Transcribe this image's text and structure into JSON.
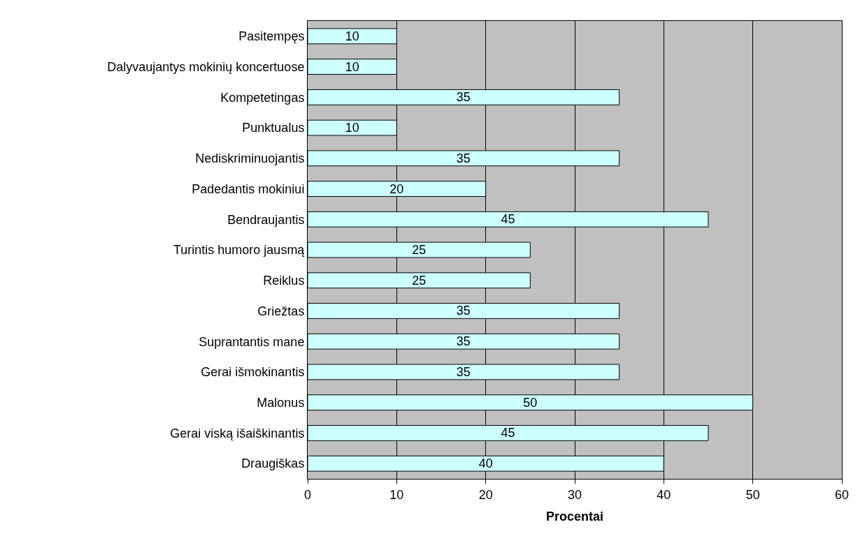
{
  "chart_data": {
    "type": "bar",
    "orientation": "horizontal",
    "xlabel": "Procentai",
    "categories": [
      "Pasitempęs",
      "Dalyvaujantys mokinių koncertuose",
      "Kompetetingas",
      "Punktualus",
      "Nediskriminuojantis",
      "Padedantis mokiniui",
      "Bendraujantis",
      "Turintis humoro jausmą",
      "Reiklus",
      "Griežtas",
      "Suprantantis mane",
      "Gerai išmokinantis",
      "Malonus",
      "Gerai viską išaiškinantis",
      "Draugiškas"
    ],
    "values": [
      10,
      10,
      35,
      10,
      35,
      20,
      45,
      25,
      25,
      35,
      35,
      35,
      50,
      45,
      40
    ],
    "color": "#ccffff",
    "data_labels": true,
    "grid": "x",
    "xlim": [
      0,
      60
    ],
    "xticks": [
      0,
      10,
      20,
      30,
      40,
      50,
      60
    ]
  }
}
